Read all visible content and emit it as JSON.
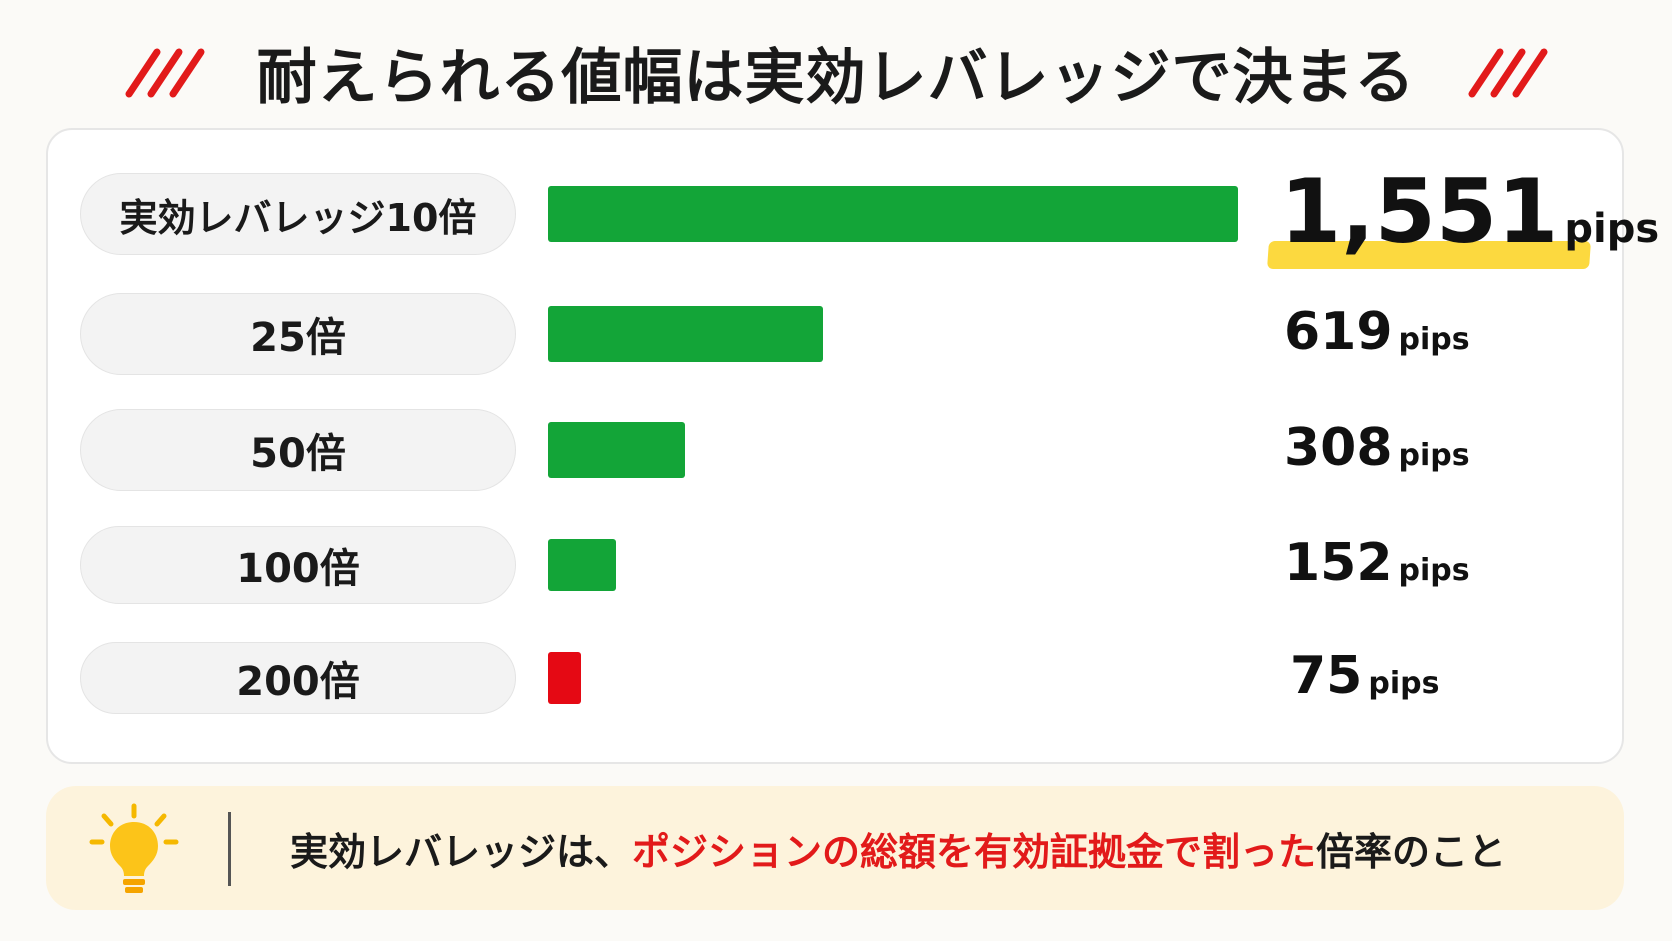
{
  "title": "耐えられる値幅は実効レバレッジで決まる",
  "chart_data": {
    "type": "bar",
    "orientation": "horizontal",
    "categories": [
      "実効レバレッジ10倍",
      "25倍",
      "50倍",
      "100倍",
      "200倍"
    ],
    "values": [
      1551,
      619,
      308,
      152,
      75
    ],
    "value_labels": [
      "1,551",
      "619",
      "308",
      "152",
      "75"
    ],
    "unit": "pips",
    "bar_colors": [
      "#13a538",
      "#13a538",
      "#13a538",
      "#13a538",
      "#e50914"
    ],
    "highlight_color": "#fcd93f",
    "accent_color": "#e21a1a",
    "grid": false,
    "legend": "none"
  },
  "note": {
    "icon": "lightbulb-icon",
    "prefix": "実効レバレッジは、",
    "highlight": "ポジションの総額を有効証拠金で割った",
    "suffix": "倍率のこと"
  }
}
